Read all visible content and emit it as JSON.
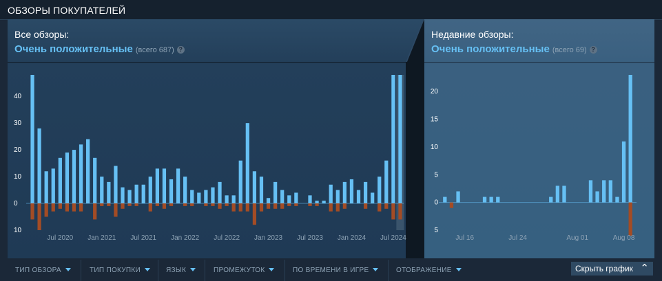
{
  "header": {
    "title": "ОБЗОРЫ ПОКУПАТЕЛЕЙ"
  },
  "overall": {
    "label": "Все обзоры:",
    "summary": "Очень положительные",
    "count": "(всего 687)",
    "help_icon": "question-icon"
  },
  "recent": {
    "label": "Недавние обзоры:",
    "summary": "Очень положительные",
    "count": "(всего 69)",
    "help_icon": "question-icon"
  },
  "filters": [
    {
      "label": "ТИП ОБЗОРА"
    },
    {
      "label": "ТИП ПОКУПКИ"
    },
    {
      "label": "ЯЗЫК"
    },
    {
      "label": "ПРОМЕЖУТОК"
    },
    {
      "label": "ПО ВРЕМЕНИ В ИГРЕ"
    },
    {
      "label": "ОТОБРАЖЕНИЕ"
    }
  ],
  "hide_graph": {
    "label": "Скрыть график",
    "icon": "double-chevron-up-icon"
  },
  "colors": {
    "positive": "#66c0f4",
    "negative": "#a34c25",
    "accent": "#66c0f4",
    "highlight": "#516a80"
  },
  "chart_data": [
    {
      "type": "bar",
      "grid": false,
      "ylim": [
        -10,
        48
      ],
      "yticks": [
        {
          "value": 40,
          "label": "40"
        },
        {
          "value": 30,
          "label": "30"
        },
        {
          "value": 20,
          "label": "20"
        },
        {
          "value": 10,
          "label": "10"
        },
        {
          "value": 0,
          "label": "0"
        },
        {
          "value": -10,
          "label": "10"
        }
      ],
      "xticks": [
        {
          "index": 4,
          "label": "Jul 2020"
        },
        {
          "index": 10,
          "label": "Jan 2021"
        },
        {
          "index": 16,
          "label": "Jul 2021"
        },
        {
          "index": 22,
          "label": "Jan 2022"
        },
        {
          "index": 28,
          "label": "Jul 2022"
        },
        {
          "index": 34,
          "label": "Jan 2023"
        },
        {
          "index": 40,
          "label": "Jul 2023"
        },
        {
          "index": 46,
          "label": "Jan 2024"
        },
        {
          "index": 52,
          "label": "Jul 2024"
        }
      ],
      "highlight_index": 53,
      "series": [
        {
          "name": "positive",
          "values": [
            48,
            28,
            12,
            13,
            17,
            19,
            20,
            22,
            24,
            17,
            10,
            8,
            14,
            6,
            5,
            7,
            7,
            10,
            13,
            13,
            9,
            13,
            10,
            5,
            4,
            5,
            6,
            8,
            3,
            3,
            16,
            30,
            12,
            10,
            2,
            8,
            5,
            3,
            4,
            0,
            3,
            1,
            1,
            7,
            5,
            8,
            9,
            5,
            8,
            4,
            10,
            16,
            48,
            48
          ]
        },
        {
          "name": "negative",
          "values": [
            -6,
            -10,
            -5,
            -3,
            -2,
            -3,
            -3,
            -3,
            0,
            -6,
            -1,
            -1,
            -5,
            -2,
            -1,
            -1,
            0,
            -3,
            -1,
            -2,
            -1,
            0,
            -1,
            -1,
            0,
            -1,
            -1,
            -2,
            -1,
            -3,
            -3,
            -3,
            -8,
            -3,
            -2,
            -2,
            -2,
            -1,
            -1,
            0,
            -1,
            -1,
            0,
            -3,
            -3,
            -2,
            0,
            0,
            -2,
            0,
            -3,
            -2,
            -6,
            -6
          ]
        }
      ]
    },
    {
      "type": "bar",
      "grid": false,
      "ylim": [
        -5,
        23
      ],
      "yticks": [
        {
          "value": 20,
          "label": "20"
        },
        {
          "value": 15,
          "label": "15"
        },
        {
          "value": 10,
          "label": "10"
        },
        {
          "value": 5,
          "label": "5"
        },
        {
          "value": 0,
          "label": "0"
        },
        {
          "value": -5,
          "label": "5"
        }
      ],
      "xticks": [
        {
          "index": 3,
          "label": "Jul 16"
        },
        {
          "index": 11,
          "label": "Jul 24"
        },
        {
          "index": 20,
          "label": "Aug 01"
        },
        {
          "index": 27,
          "label": "Aug 08"
        }
      ],
      "series": [
        {
          "name": "positive",
          "values": [
            1,
            0,
            2,
            0,
            0,
            0,
            1,
            1,
            1,
            0,
            0,
            0,
            0,
            0,
            0,
            0,
            1,
            3,
            3,
            0,
            0,
            0,
            4,
            2,
            4,
            4,
            1,
            11,
            23
          ]
        },
        {
          "name": "negative",
          "values": [
            0,
            -1,
            0,
            0,
            0,
            0,
            0,
            0,
            0,
            0,
            0,
            0,
            0,
            0,
            0,
            0,
            0,
            0,
            0,
            0,
            0,
            0,
            0,
            0,
            0,
            0,
            0,
            0,
            -6
          ]
        }
      ]
    }
  ]
}
